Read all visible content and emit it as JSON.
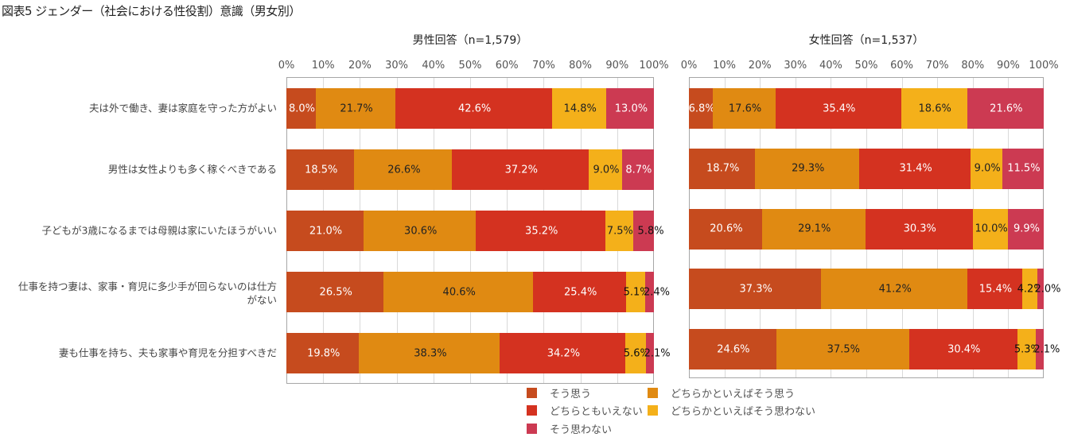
{
  "chart_data": {
    "type": "bar",
    "orientation": "horizontal",
    "stacked": "100%",
    "title": "図表5 ジェンダー（社会における性役割）意識（男女別）",
    "categories": [
      "夫は外で働き、妻は家庭を守った方がよい",
      "男性は女性よりも多く稼ぐべきである",
      "子どもが3歳になるまでは母親は家にいたほうがいい",
      "仕事を持つ妻は、家事・育児に多少手が回らないのは仕方\nがない",
      "妻も仕事を持ち、夫も家事や育児を分担すべきだ"
    ],
    "legend": {
      "position": "bottom",
      "entries": [
        {
          "label": "そう思う",
          "color": "#c64b1e"
        },
        {
          "label": "どちらかといえばそう思う",
          "color": "#e08a12"
        },
        {
          "label": "どちらともいえない",
          "color": "#d43220"
        },
        {
          "label": "どちらかといえばそう思わない",
          "color": "#f4b01a"
        },
        {
          "label": "そう思わない",
          "color": "#cc3a52"
        }
      ]
    },
    "xlim": [
      0,
      100
    ],
    "xticks": [
      "0%",
      "10%",
      "20%",
      "30%",
      "40%",
      "50%",
      "60%",
      "70%",
      "80%",
      "90%",
      "100%"
    ],
    "grid": true,
    "panels": [
      {
        "title": "男性回答（n=1,579）",
        "series": [
          {
            "name": "そう思う",
            "values": [
              8.0,
              18.5,
              21.0,
              26.5,
              19.8
            ]
          },
          {
            "name": "どちらかといえばそう思う",
            "values": [
              21.7,
              26.6,
              30.6,
              40.6,
              38.3
            ]
          },
          {
            "name": "どちらともいえない",
            "values": [
              42.6,
              37.2,
              35.2,
              25.4,
              34.2
            ]
          },
          {
            "name": "どちらかといえばそう思わない",
            "values": [
              14.8,
              9.0,
              7.5,
              5.1,
              5.6
            ]
          },
          {
            "name": "そう思わない",
            "values": [
              13.0,
              8.7,
              5.8,
              2.4,
              2.1
            ]
          }
        ]
      },
      {
        "title": "女性回答（n=1,537）",
        "series": [
          {
            "name": "そう思う",
            "values": [
              6.8,
              18.7,
              20.6,
              37.3,
              24.6
            ]
          },
          {
            "name": "どちらかといえばそう思う",
            "values": [
              17.6,
              29.3,
              29.1,
              41.2,
              37.5
            ]
          },
          {
            "name": "どちらともいえない",
            "values": [
              35.4,
              31.4,
              30.3,
              15.4,
              30.4
            ]
          },
          {
            "name": "どちらかといえばそう思わない",
            "values": [
              18.6,
              9.0,
              10.0,
              4.2,
              5.3
            ]
          },
          {
            "name": "そう思わない",
            "values": [
              21.6,
              11.5,
              9.9,
              2.0,
              2.1
            ]
          }
        ]
      }
    ]
  }
}
